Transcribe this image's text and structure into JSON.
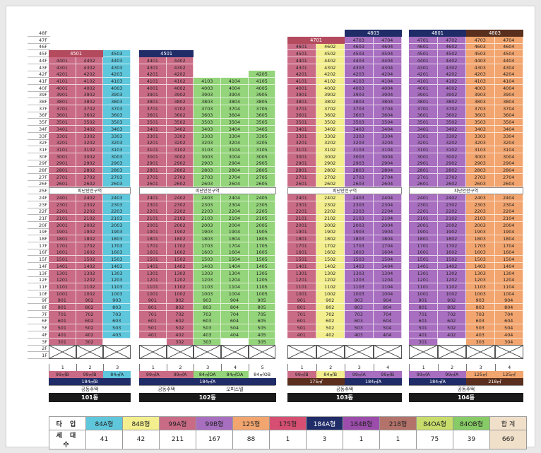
{
  "colors": {
    "99A": "#ca6b86",
    "84B": "#f3ef8f",
    "84A": "#5fc7dc",
    "99B": "#a86fc0",
    "84OA": "#94d47a",
    "84OB": "#ffffff",
    "125": "#f2a56e",
    "184A": "#202c68",
    "dark": "#5a2f1d",
    "refuge": "#ffffff"
  },
  "floor_labels": [
    "48F",
    "47F",
    "46F",
    "45F",
    "44F",
    "43F",
    "42F",
    "41F",
    "40F",
    "39F",
    "38F",
    "37F",
    "36F",
    "35F",
    "34F",
    "33F",
    "32F",
    "31F",
    "30F",
    "29F",
    "28F",
    "27F",
    "26F",
    "25F",
    "24F",
    "23F",
    "22F",
    "21F",
    "20F",
    "19F",
    "18F",
    "17F",
    "16F",
    "15F",
    "14F",
    "13F",
    "12F",
    "11F",
    "10F",
    "9F",
    "8F",
    "7F",
    "6F",
    "5F",
    "4F",
    "3F",
    "2F",
    "1F"
  ],
  "refuge_label": "피난안전구역",
  "buildings": [
    {
      "name": "101동",
      "type_label": "공동주택",
      "line_numbers": [
        "1",
        "2",
        "3"
      ],
      "area_labels": [
        [
          "99㎡B",
          "99A"
        ],
        [
          "99㎡B",
          "99A"
        ],
        [
          "84㎡A",
          "84A"
        ]
      ],
      "dup_labels": [
        [
          "184㎡B",
          "184A"
        ]
      ],
      "headers": [
        {
          "text": "4501",
          "c0": 0,
          "c1": 1,
          "floor": 45,
          "style": "rose"
        },
        {
          "text": "4503",
          "c0": 2,
          "c1": 2,
          "floor": 45,
          "style": "plain84A"
        }
      ],
      "columns": [
        {
          "color": "99A",
          "top": 44,
          "bottom": 3
        },
        {
          "color": "99A",
          "top": 44,
          "bottom": 3
        },
        {
          "color": "84A",
          "top": 44,
          "bottom": 4
        }
      ],
      "overrides": {
        "3": {
          "0": "301",
          "1": "302"
        }
      }
    },
    {
      "name": "102동",
      "type_label": "공동주택",
      "type_label_2": "오피스텔",
      "line_numbers": [
        "1",
        "2",
        "3",
        "4",
        "5"
      ],
      "area_labels": [
        [
          "99㎡A",
          "99A"
        ],
        [
          "99㎡A",
          "99A"
        ],
        [
          "84㎡OA",
          "84OA"
        ],
        [
          "84㎡OA",
          "84OA"
        ],
        [
          "84㎡OB",
          "84OB"
        ]
      ],
      "dup_labels": [
        [
          "184㎡A",
          "184A"
        ]
      ],
      "headers": [
        {
          "text": "4501",
          "c0": 0,
          "c1": 1,
          "floor": 45,
          "style": "navy"
        }
      ],
      "columns": [
        {
          "color": "99A",
          "top": 44,
          "bottom": 4
        },
        {
          "color": "99A",
          "top": 44,
          "bottom": 4
        },
        {
          "color": "84OA",
          "top": 41,
          "bottom": 3
        },
        {
          "color": "84OA",
          "top": 41,
          "bottom": 4
        },
        {
          "color": "84OA",
          "top": 42,
          "bottom": 3
        }
      ],
      "overrides": {
        "3": {
          "1": "302"
        }
      }
    },
    {
      "name": "103동",
      "type_label": "공동주택",
      "line_numbers": [
        "1",
        "2",
        "3",
        "4"
      ],
      "area_labels": [
        [
          "99㎡B",
          "99A"
        ],
        [
          "84㎡B",
          "84B"
        ],
        [
          "99㎡A",
          "99B"
        ],
        [
          "99㎡B",
          "99B"
        ]
      ],
      "dup_labels": [
        [
          "175㎡",
          "dark"
        ],
        [
          "184㎡A",
          "184A"
        ]
      ],
      "headers": [
        {
          "text": "4701",
          "c0": 0,
          "c1": 1,
          "floor": 47,
          "style": "rose"
        },
        {
          "text": "4803",
          "c0": 2,
          "c1": 3,
          "floor": 48,
          "style": "navy"
        },
        {
          "text": "4703",
          "c0": 2,
          "c1": 2,
          "floor": 47,
          "style": "cell"
        },
        {
          "text": "4704",
          "c0": 3,
          "c1": 3,
          "floor": 47,
          "style": "cell"
        }
      ],
      "columns": [
        {
          "color": "99A",
          "top": 46,
          "bottom": 4
        },
        {
          "color": "84B",
          "top": 46,
          "bottom": 4
        },
        {
          "color": "99B",
          "top": 46,
          "bottom": 4
        },
        {
          "color": "99B",
          "top": 46,
          "bottom": 4
        }
      ],
      "overrides": {}
    },
    {
      "name": "104동",
      "type_label": "공동주택",
      "line_numbers": [
        "1",
        "2",
        "3",
        "4"
      ],
      "area_labels": [
        [
          "99㎡A",
          "99B"
        ],
        [
          "99㎡A",
          "99B"
        ],
        [
          "125㎡",
          "125"
        ],
        [
          "125㎡",
          "125"
        ]
      ],
      "dup_labels": [
        [
          "184㎡A",
          "184A"
        ],
        [
          "218㎡",
          "dark"
        ]
      ],
      "headers": [
        {
          "text": "4801",
          "c0": 0,
          "c1": 1,
          "floor": 48,
          "style": "navy"
        },
        {
          "text": "4803",
          "c0": 2,
          "c1": 3,
          "floor": 48,
          "style": "brn"
        },
        {
          "text": "4701",
          "c0": 0,
          "c1": 0,
          "floor": 47,
          "style": "cell"
        },
        {
          "text": "4702",
          "c0": 1,
          "c1": 1,
          "floor": 47,
          "style": "cell"
        },
        {
          "text": "4703",
          "c0": 2,
          "c1": 2,
          "floor": 47,
          "style": "cell"
        },
        {
          "text": "4704",
          "c0": 3,
          "c1": 3,
          "floor": 47,
          "style": "cell"
        }
      ],
      "columns": [
        {
          "color": "99B",
          "top": 46,
          "bottom": 4
        },
        {
          "color": "99B",
          "top": 46,
          "bottom": 4
        },
        {
          "color": "125",
          "top": 46,
          "bottom": 3
        },
        {
          "color": "125",
          "top": 46,
          "bottom": 3
        }
      ],
      "overrides": {
        "3": {
          "0": "301"
        }
      }
    }
  ],
  "legend": {
    "row1_label": "타 입",
    "row2_label": "세 대 수",
    "types": [
      {
        "label": "84A형",
        "count": "41",
        "color": "84A"
      },
      {
        "label": "84B형",
        "count": "42",
        "color": "84B"
      },
      {
        "label": "99A형",
        "count": "211",
        "color": "99A"
      },
      {
        "label": "99B형",
        "count": "167",
        "color": "99B"
      },
      {
        "label": "125형",
        "count": "88",
        "color": "125"
      },
      {
        "label": "175형",
        "count": "1",
        "color": "#d64f72"
      },
      {
        "label": "184A형",
        "count": "3",
        "color": "184A"
      },
      {
        "label": "184B형",
        "count": "1",
        "color": "#9c4dab"
      },
      {
        "label": "218형",
        "count": "1",
        "color": "#b3736a"
      },
      {
        "label": "84OA형",
        "count": "75",
        "color": "#c8dc6c"
      },
      {
        "label": "84OB형",
        "count": "39",
        "color": "#87cb66"
      }
    ],
    "total_label": "합 계",
    "total_count": "669",
    "total_color": "#f0dfc9"
  }
}
